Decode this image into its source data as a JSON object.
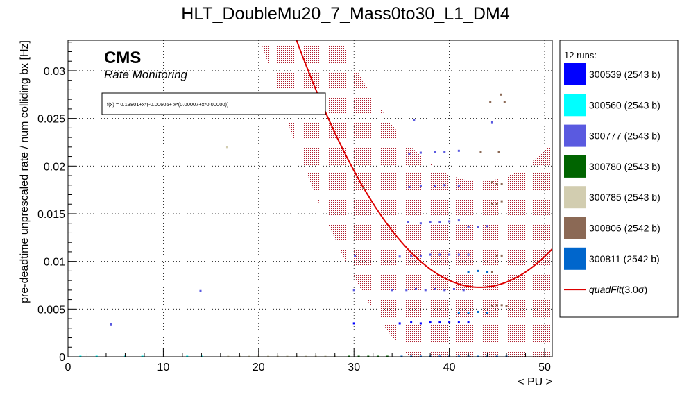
{
  "chart_data": {
    "type": "scatter",
    "title": "HLT_DoubleMu20_7_Mass0to30_L1_DM4",
    "xlabel": "< PU >",
    "ylabel": "pre-deadtime unprescaled rate / num colliding bx [Hz]",
    "xlim": [
      0,
      50.8
    ],
    "ylim": [
      0,
      0.0332
    ],
    "xticks": [
      0,
      10,
      20,
      30,
      40,
      50
    ],
    "xtick_labels": [
      "0",
      "10",
      "20",
      "30",
      "40",
      "50"
    ],
    "yticks": [
      0,
      0.005,
      0.01,
      0.015,
      0.02,
      0.025,
      0.03
    ],
    "ytick_labels": [
      "0",
      "0.005",
      "0.01",
      "0.015",
      "0.02",
      "0.025",
      "0.03"
    ],
    "grid": true,
    "legend_position": "right",
    "cms_label": "CMS",
    "cms_sublabel": "Rate Monitoring",
    "fit_formula": "f(x) = 0.13801+x*(-0.00605+ x*(0.00007+x*0.00000))",
    "legend_header": "12 runs:",
    "fit": {
      "name": "quadFit",
      "band_label": "(3.0σ)",
      "coefficients": [
        0.13801,
        -0.00605,
        7e-05,
        0.0
      ],
      "band_halfwidth": 0.0111,
      "color": "#dd0000"
    },
    "series": [
      {
        "name": "300539 (2543 b)",
        "color": "#0000ff",
        "points": [
          [
            30,
            0.0035
          ],
          [
            34.8,
            0.0035
          ],
          [
            36,
            0.0036
          ],
          [
            37,
            0.0035
          ],
          [
            38,
            0.0036
          ],
          [
            39,
            0.0036
          ],
          [
            40,
            0.0036
          ],
          [
            41,
            0.0036
          ],
          [
            42,
            0.0036
          ]
        ]
      },
      {
        "name": "300560 (2543 b)",
        "color": "#00ffff",
        "points": [
          [
            1.3,
            0
          ],
          [
            3,
            0
          ],
          [
            6,
            0
          ],
          [
            7.8,
            0
          ],
          [
            12.5,
            0
          ],
          [
            14,
            0
          ]
        ]
      },
      {
        "name": "300777 (2543 b)",
        "color": "#5a5ae0",
        "points": [
          [
            4.5,
            0.0034
          ],
          [
            13.9,
            0.0069
          ],
          [
            30,
            0.007
          ],
          [
            34,
            0.007
          ],
          [
            35.5,
            0.007
          ],
          [
            36.5,
            0.0071
          ],
          [
            37.5,
            0.007
          ],
          [
            38.5,
            0.0071
          ],
          [
            39.5,
            0.007
          ],
          [
            40.5,
            0.0071
          ],
          [
            41.5,
            0.007
          ],
          [
            30.1,
            0.0106
          ],
          [
            34.8,
            0.0105
          ],
          [
            36,
            0.0106
          ],
          [
            37,
            0.0106
          ],
          [
            38,
            0.0107
          ],
          [
            39,
            0.0107
          ],
          [
            40,
            0.0107
          ],
          [
            41,
            0.0107
          ],
          [
            42,
            0.0107
          ],
          [
            35.7,
            0.0141
          ],
          [
            37,
            0.014
          ],
          [
            38,
            0.0141
          ],
          [
            39,
            0.0141
          ],
          [
            40,
            0.0142
          ],
          [
            41,
            0.0143
          ],
          [
            42,
            0.0136
          ],
          [
            43,
            0.0136
          ],
          [
            44,
            0.0137
          ],
          [
            35.8,
            0.0178
          ],
          [
            37,
            0.0179
          ],
          [
            38.5,
            0.0179
          ],
          [
            39.5,
            0.018
          ],
          [
            41,
            0.0179
          ],
          [
            35.8,
            0.0213
          ],
          [
            37,
            0.0214
          ],
          [
            38.5,
            0.0215
          ],
          [
            39.5,
            0.0215
          ],
          [
            41,
            0.0216
          ],
          [
            36.3,
            0.0248
          ],
          [
            44.5,
            0.0246
          ]
        ]
      },
      {
        "name": "300780 (2543 b)",
        "color": "#006400",
        "points": [
          [
            29.5,
            0
          ],
          [
            30.5,
            0
          ],
          [
            31.5,
            0
          ],
          [
            32.5,
            0
          ],
          [
            33.5,
            0
          ]
        ]
      },
      {
        "name": "300785 (2543 b)",
        "color": "#d2cdb0",
        "points": [
          [
            16.7,
            0.022
          ],
          [
            16.8,
            0
          ],
          [
            18,
            0
          ],
          [
            19,
            0
          ],
          [
            20,
            0
          ],
          [
            21,
            0
          ],
          [
            22,
            0
          ],
          [
            23,
            0
          ],
          [
            24,
            0
          ],
          [
            25,
            0
          ],
          [
            26,
            0
          ],
          [
            27,
            0
          ],
          [
            28,
            0
          ]
        ]
      },
      {
        "name": "300806 (2542 b)",
        "color": "#8b6955",
        "points": [
          [
            31,
            0.0177
          ],
          [
            44.5,
            0.0089
          ],
          [
            45,
            0.0106
          ],
          [
            45.5,
            0.0106
          ],
          [
            44.5,
            0.016
          ],
          [
            45,
            0.016
          ],
          [
            45.5,
            0.0163
          ],
          [
            44.5,
            0.0053
          ],
          [
            45,
            0.0054
          ],
          [
            45.5,
            0.0054
          ],
          [
            46,
            0.0053
          ],
          [
            44.5,
            0.0183
          ],
          [
            45,
            0.0181
          ],
          [
            45.5,
            0.0181
          ],
          [
            43.3,
            0.0215
          ],
          [
            45.2,
            0.0215
          ],
          [
            44.3,
            0.0267
          ],
          [
            45.4,
            0.0275
          ],
          [
            45.8,
            0.0267
          ]
        ]
      },
      {
        "name": "300811 (2542 b)",
        "color": "#0066cc",
        "points": [
          [
            41,
            0.0046
          ],
          [
            42,
            0.0046
          ],
          [
            43,
            0.0047
          ],
          [
            44,
            0.0046
          ],
          [
            42,
            0.0089
          ],
          [
            43,
            0.009
          ],
          [
            44,
            0.0089
          ],
          [
            43,
            0
          ],
          [
            44,
            0
          ],
          [
            45,
            0
          ],
          [
            46,
            0
          ],
          [
            35,
            0
          ],
          [
            36,
            0
          ],
          [
            37,
            0
          ],
          [
            38,
            0
          ],
          [
            39,
            0
          ],
          [
            40,
            0
          ],
          [
            41,
            0
          ],
          [
            42,
            0
          ]
        ]
      }
    ]
  }
}
